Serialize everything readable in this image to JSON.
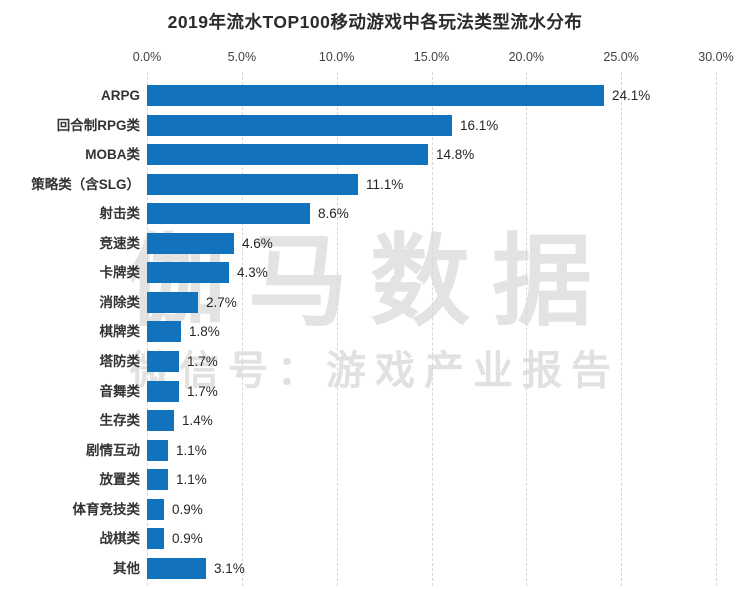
{
  "title": "2019年流水TOP100移动游戏中各玩法类型流水分布",
  "watermark": {
    "line1": "伽马数据",
    "line2": "微信号：游戏产业报告"
  },
  "chart_data": {
    "type": "bar",
    "orientation": "horizontal",
    "title": "2019年流水TOP100移动游戏中各玩法类型流水分布",
    "categories": [
      "ARPG",
      "回合制RPG类",
      "MOBA类",
      "策略类（含SLG）",
      "射击类",
      "竞速类",
      "卡牌类",
      "消除类",
      "棋牌类",
      "塔防类",
      "音舞类",
      "生存类",
      "剧情互动",
      "放置类",
      "体育竞技类",
      "战棋类",
      "其他"
    ],
    "values": [
      24.1,
      16.1,
      14.8,
      11.1,
      8.6,
      4.6,
      4.3,
      2.7,
      1.8,
      1.7,
      1.7,
      1.4,
      1.1,
      1.1,
      0.9,
      0.9,
      3.1
    ],
    "value_labels": [
      "24.1%",
      "16.1%",
      "14.8%",
      "11.1%",
      "8.6%",
      "4.6%",
      "4.3%",
      "2.7%",
      "1.8%",
      "1.7%",
      "1.7%",
      "1.4%",
      "1.1%",
      "1.1%",
      "0.9%",
      "0.9%",
      "3.1%"
    ],
    "x_ticks": [
      "0.0%",
      "5.0%",
      "10.0%",
      "15.0%",
      "20.0%",
      "25.0%",
      "30.0%"
    ],
    "xlim": [
      0,
      30
    ],
    "xlabel": "",
    "ylabel": "",
    "grid": "vertical-dashed",
    "legend": "none",
    "bar_color": "#1272bc",
    "grid_color": "#d7d7d7"
  }
}
